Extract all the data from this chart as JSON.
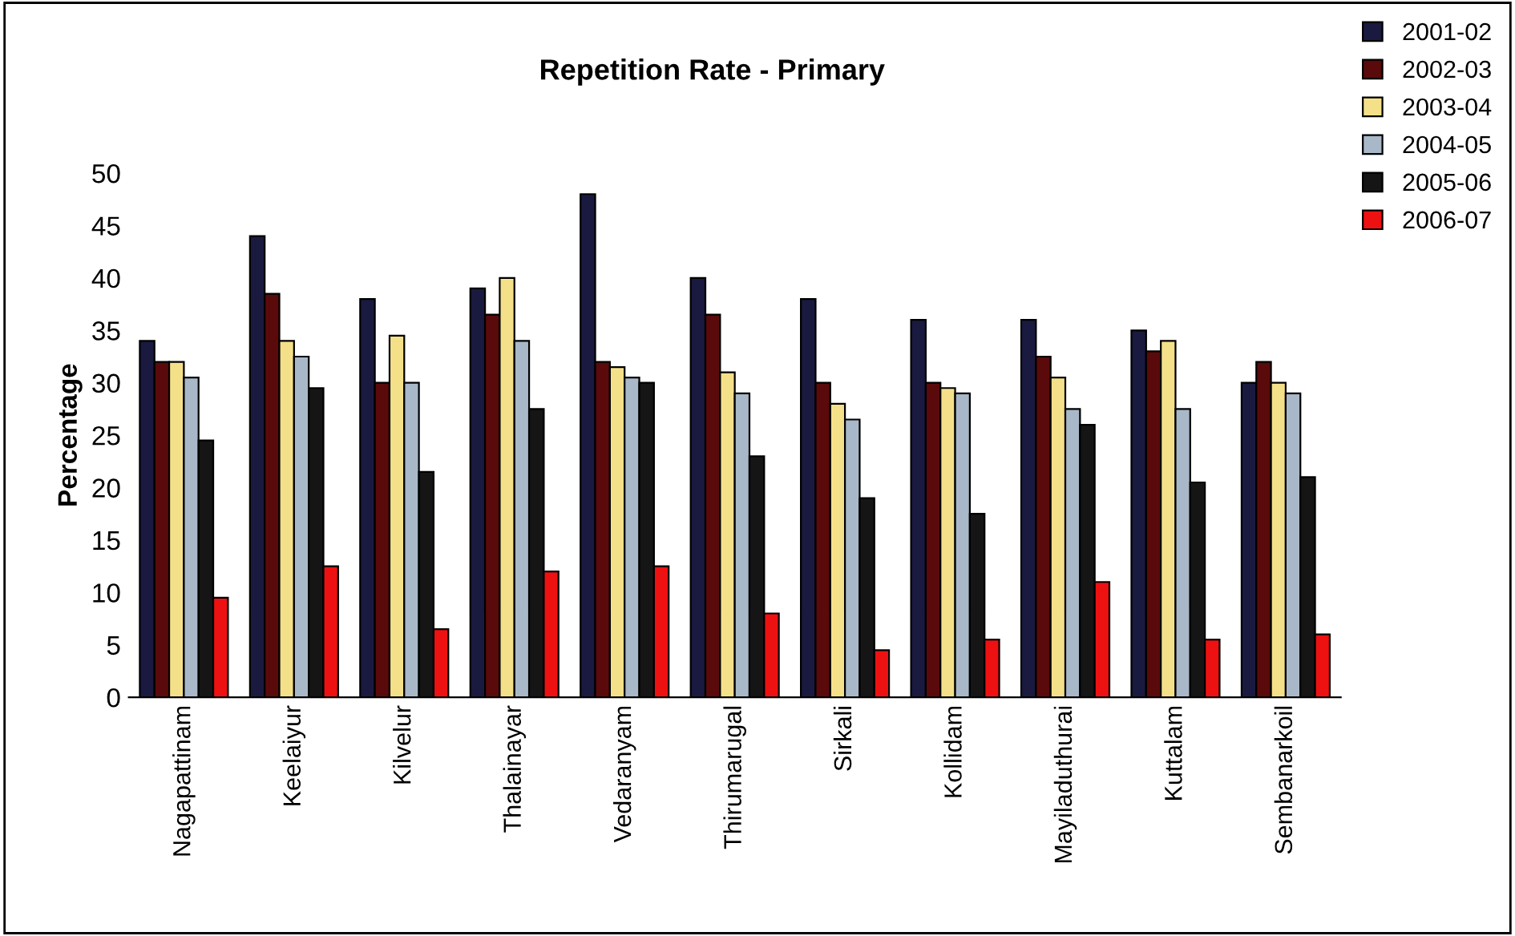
{
  "chart_data": {
    "type": "bar",
    "title": "Repetition Rate - Primary",
    "ylabel": "Percentage",
    "categories": [
      "Nagapattinam",
      "Keelaiyur",
      "Kilvelur",
      "Thalainayar",
      "Vedaranyam",
      "Thirumarugal",
      "Sirkali",
      "Kollidam",
      "Mayiladuthurai",
      "Kuttalam",
      "Sembanarkoil"
    ],
    "series": [
      {
        "name": "2001-02",
        "color": "#1a1a40",
        "values": [
          34,
          44,
          38,
          39,
          48,
          40,
          38,
          36,
          36,
          35,
          30
        ]
      },
      {
        "name": "2002-03",
        "color": "#5a0a0a",
        "values": [
          32,
          38.5,
          30,
          36.5,
          32,
          36.5,
          30,
          30,
          32.5,
          33,
          32
        ]
      },
      {
        "name": "2003-04",
        "color": "#f5e08a",
        "values": [
          32,
          34,
          34.5,
          40,
          31.5,
          31,
          28,
          29.5,
          30.5,
          34,
          30
        ]
      },
      {
        "name": "2004-05",
        "color": "#a8b8c8",
        "values": [
          30.5,
          32.5,
          30,
          34,
          30.5,
          29,
          26.5,
          29,
          27.5,
          27.5,
          29
        ]
      },
      {
        "name": "2005-06",
        "color": "#151515",
        "values": [
          24.5,
          29.5,
          21.5,
          27.5,
          30,
          23,
          19,
          17.5,
          26,
          20.5,
          21
        ]
      },
      {
        "name": "2006-07",
        "color": "#ee1111",
        "values": [
          9.5,
          12.5,
          6.5,
          12,
          12.5,
          8,
          4.5,
          5.5,
          11,
          5.5,
          6
        ]
      }
    ],
    "ylim": [
      0,
      50
    ],
    "yticks": [
      0,
      5,
      10,
      15,
      20,
      25,
      30,
      35,
      40,
      45,
      50
    ],
    "grid": false,
    "legend": "top right"
  }
}
